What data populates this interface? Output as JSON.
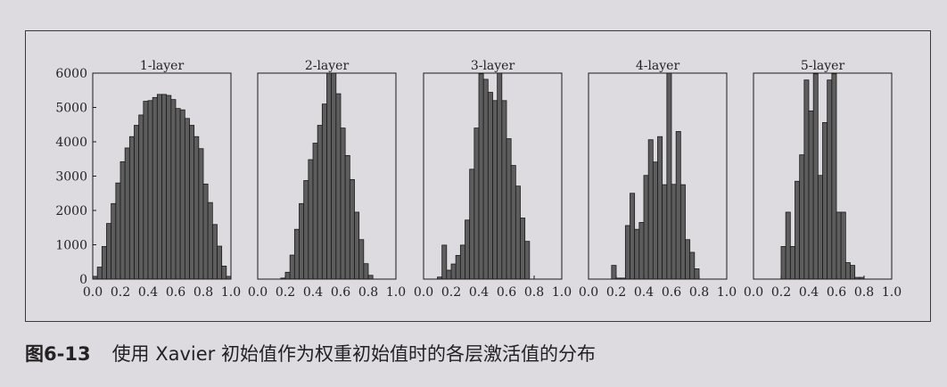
{
  "caption": {
    "figure_label": "图",
    "figure_number": "6-13",
    "text": "使用 Xavier 初始值作为权重初始值时的各层激活值的分布"
  },
  "colors": {
    "bar_fill": "#5d5d5d",
    "bar_edge": "#1a1a1a",
    "axis": "#1a1a1a",
    "text": "#222222"
  },
  "chart_data": [
    {
      "type": "bar",
      "title": "1-layer",
      "xlim": [
        0.0,
        1.0
      ],
      "ylim": [
        0,
        6000
      ],
      "xticks": [
        "0.0",
        "0.2",
        "0.4",
        "0.6",
        "0.8",
        "1.0"
      ],
      "yticks": [
        "0",
        "1000",
        "2000",
        "3000",
        "4000",
        "5000",
        "6000"
      ],
      "bin_width": 0.0333,
      "bin_starts": [
        0.0,
        0.0333,
        0.0667,
        0.1,
        0.1333,
        0.1667,
        0.2,
        0.2333,
        0.2667,
        0.3,
        0.3333,
        0.3667,
        0.4,
        0.4333,
        0.4667,
        0.5,
        0.5333,
        0.5667,
        0.6,
        0.6333,
        0.6667,
        0.7,
        0.7333,
        0.7667,
        0.8,
        0.8333,
        0.8667,
        0.9,
        0.9333,
        0.9667
      ],
      "values": [
        80,
        350,
        950,
        1620,
        2200,
        2800,
        3420,
        3820,
        4150,
        4480,
        4780,
        5180,
        5200,
        5290,
        5380,
        5380,
        5350,
        5230,
        4970,
        4930,
        4680,
        4480,
        4150,
        3800,
        2770,
        2230,
        1590,
        960,
        380,
        80
      ]
    },
    {
      "type": "bar",
      "title": "2-layer",
      "xlim": [
        0.0,
        1.0
      ],
      "ylim": [
        0,
        6000
      ],
      "xticks": [
        "0.0",
        "0.2",
        "0.4",
        "0.6",
        "0.8",
        "1.0"
      ],
      "bin_width": 0.0333,
      "bin_starts": [
        0.1667,
        0.2,
        0.2333,
        0.2667,
        0.3,
        0.3333,
        0.3667,
        0.4,
        0.4333,
        0.4667,
        0.5,
        0.5333,
        0.5667,
        0.6,
        0.6333,
        0.6667,
        0.7,
        0.7333,
        0.7667,
        0.8
      ],
      "values": [
        30,
        200,
        700,
        1450,
        2200,
        2870,
        3480,
        3960,
        4480,
        5100,
        6000,
        6000,
        5400,
        4400,
        3600,
        2900,
        1950,
        1150,
        450,
        110
      ]
    },
    {
      "type": "bar",
      "title": "3-layer",
      "xlim": [
        0.0,
        1.0
      ],
      "ylim": [
        0,
        6000
      ],
      "xticks": [
        "0.0",
        "0.2",
        "0.4",
        "0.6",
        "0.8",
        "1.0"
      ],
      "bin_width": 0.0333,
      "bin_starts": [
        0.1,
        0.1333,
        0.1667,
        0.2,
        0.2333,
        0.2667,
        0.3,
        0.3333,
        0.3667,
        0.4,
        0.4333,
        0.4667,
        0.5,
        0.5333,
        0.5667,
        0.6,
        0.6333,
        0.6667,
        0.7,
        0.7333
      ],
      "values": [
        60,
        990,
        260,
        440,
        690,
        990,
        1720,
        3200,
        4400,
        5980,
        5820,
        5440,
        5200,
        6000,
        5200,
        4090,
        3310,
        2710,
        1780,
        1100
      ]
    },
    {
      "type": "bar",
      "title": "4-layer",
      "xlim": [
        0.0,
        1.0
      ],
      "ylim": [
        0,
        6000
      ],
      "xticks": [
        "0.0",
        "0.2",
        "0.4",
        "0.6",
        "0.8",
        "1.0"
      ],
      "bin_width": 0.0333,
      "bin_starts": [
        0.1667,
        0.2,
        0.2333,
        0.2667,
        0.3,
        0.3333,
        0.3667,
        0.4,
        0.4333,
        0.4667,
        0.5,
        0.5333,
        0.5667,
        0.6,
        0.6333,
        0.6667,
        0.7,
        0.7333,
        0.7667
      ],
      "values": [
        400,
        30,
        30,
        1560,
        2500,
        1450,
        1650,
        3020,
        4060,
        3410,
        4150,
        2750,
        6000,
        2760,
        4300,
        2750,
        1150,
        780,
        300
      ]
    },
    {
      "type": "bar",
      "title": "5-layer",
      "xlim": [
        0.0,
        1.0
      ],
      "ylim": [
        0,
        6000
      ],
      "xticks": [
        "0.0",
        "0.2",
        "0.4",
        "0.6",
        "0.8",
        "1.0"
      ],
      "bin_width": 0.0333,
      "bin_starts": [
        0.2,
        0.2333,
        0.2667,
        0.3,
        0.3333,
        0.3667,
        0.4,
        0.4333,
        0.4667,
        0.5,
        0.5333,
        0.5667,
        0.6,
        0.6333,
        0.6667,
        0.7,
        0.7333,
        0.7667
      ],
      "values": [
        950,
        1950,
        950,
        2850,
        3620,
        5800,
        4900,
        5980,
        3020,
        4560,
        5800,
        5980,
        1950,
        1950,
        480,
        400,
        50,
        50
      ]
    }
  ]
}
